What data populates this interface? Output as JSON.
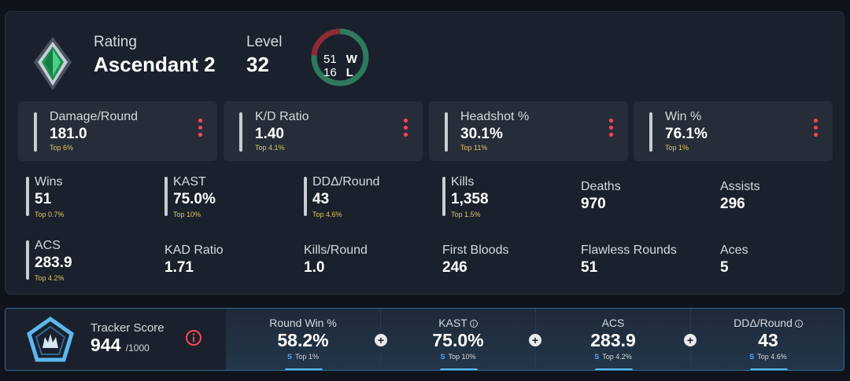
{
  "rank": {
    "rating_label": "Rating",
    "rating_value": "Ascendant 2",
    "level_label": "Level",
    "level_value": "32",
    "wins": "51",
    "wins_key": "W",
    "losses": "16",
    "losses_key": "L",
    "win_fraction": 0.761,
    "colors": {
      "win": "#2e7a5f",
      "loss": "#8c2b36",
      "rank_gem": "#2fb36a"
    }
  },
  "cards": [
    {
      "name": "Damage/Round",
      "value": "181.0",
      "top": "Top 6%"
    },
    {
      "name": "K/D Ratio",
      "value": "1.40",
      "top": "Top 4.1%"
    },
    {
      "name": "Headshot %",
      "value": "30.1%",
      "top": "Top 11%"
    },
    {
      "name": "Win %",
      "value": "76.1%",
      "top": "Top 1%"
    }
  ],
  "stats": [
    {
      "name": "Wins",
      "value": "51",
      "top": "Top 0.7%"
    },
    {
      "name": "KAST",
      "value": "75.0%",
      "top": "Top 10%"
    },
    {
      "name": "DDΔ/Round",
      "value": "43",
      "top": "Top 4.6%"
    },
    {
      "name": "Kills",
      "value": "1,358",
      "top": "Top 1.5%"
    },
    {
      "name": "Deaths",
      "value": "970"
    },
    {
      "name": "Assists",
      "value": "296"
    },
    {
      "name": "ACS",
      "value": "283.9",
      "top": "Top 4.2%"
    },
    {
      "name": "KAD Ratio",
      "value": "1.71"
    },
    {
      "name": "Kills/Round",
      "value": "1.0"
    },
    {
      "name": "First Bloods",
      "value": "246"
    },
    {
      "name": "Flawless Rounds",
      "value": "51"
    },
    {
      "name": "Aces",
      "value": "5"
    }
  ],
  "tracker": {
    "label": "Tracker Score",
    "value": "944",
    "max": "/1000",
    "columns": [
      {
        "name": "Round Win %",
        "value": "58.2%",
        "grade": "S",
        "top": "Top 1%"
      },
      {
        "name": "KAST",
        "value": "75.0%",
        "grade": "S",
        "top": "Top 10%"
      },
      {
        "name": "ACS",
        "value": "283.9",
        "grade": "S",
        "top": "Top 4.2%"
      },
      {
        "name": "DDΔ/Round",
        "value": "43",
        "grade": "S",
        "top": "Top 4.6%"
      }
    ],
    "info_glyph": "i",
    "plus_glyph": "+"
  }
}
